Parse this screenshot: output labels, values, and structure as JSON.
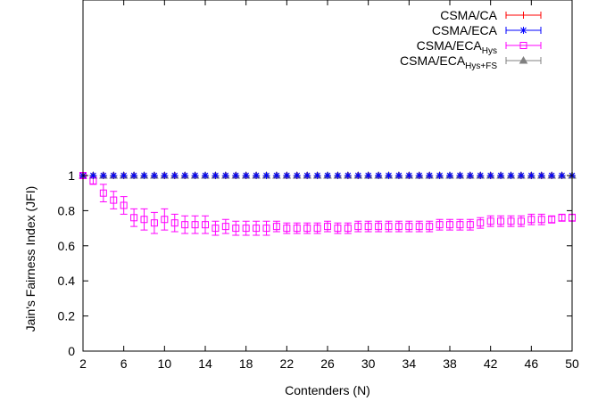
{
  "chart_data": {
    "type": "line",
    "xlabel": "Contenders (N)",
    "ylabel": "Jain's Fairness Index (JFI)",
    "xlim": [
      2,
      50
    ],
    "ylim": [
      0,
      2
    ],
    "grid": false,
    "legend_position": "top-right",
    "x_ticks": [
      "2",
      "6",
      "10",
      "14",
      "18",
      "22",
      "26",
      "30",
      "34",
      "38",
      "42",
      "46",
      "50"
    ],
    "y_ticks": [
      "0",
      "0.2",
      "0.4",
      "0.6",
      "0.8",
      "1"
    ],
    "x": [
      2,
      3,
      4,
      5,
      6,
      7,
      8,
      9,
      10,
      11,
      12,
      13,
      14,
      15,
      16,
      17,
      18,
      19,
      20,
      21,
      22,
      23,
      24,
      25,
      26,
      27,
      28,
      29,
      30,
      31,
      32,
      33,
      34,
      35,
      36,
      37,
      38,
      39,
      40,
      41,
      42,
      43,
      44,
      45,
      46,
      47,
      48,
      49,
      50
    ],
    "series": [
      {
        "name_main": "CSMA/CA",
        "name_sub": "",
        "color": "#ff0000",
        "marker": "plus",
        "values": [
          1,
          1,
          1,
          1,
          1,
          1,
          1,
          1,
          1,
          1,
          1,
          1,
          1,
          1,
          1,
          1,
          1,
          1,
          1,
          1,
          1,
          1,
          1,
          1,
          1,
          1,
          1,
          1,
          1,
          1,
          1,
          1,
          1,
          1,
          1,
          1,
          1,
          1,
          1,
          1,
          1,
          1,
          1,
          1,
          1,
          1,
          1,
          1,
          1
        ],
        "errors": [
          0,
          0,
          0,
          0,
          0,
          0,
          0,
          0,
          0,
          0,
          0,
          0,
          0,
          0,
          0,
          0,
          0,
          0,
          0,
          0,
          0,
          0,
          0,
          0,
          0,
          0,
          0,
          0,
          0,
          0,
          0,
          0,
          0,
          0,
          0,
          0,
          0,
          0,
          0,
          0,
          0,
          0,
          0,
          0,
          0,
          0,
          0,
          0,
          0
        ]
      },
      {
        "name_main": "CSMA/ECA",
        "name_sub": "",
        "color": "#0000ff",
        "marker": "star",
        "values": [
          1,
          1,
          1,
          1,
          1,
          1,
          1,
          1,
          1,
          1,
          1,
          1,
          1,
          1,
          1,
          1,
          1,
          1,
          1,
          1,
          1,
          1,
          1,
          1,
          1,
          1,
          1,
          1,
          1,
          1,
          1,
          1,
          1,
          1,
          1,
          1,
          1,
          1,
          1,
          1,
          1,
          1,
          1,
          1,
          1,
          1,
          1,
          1,
          1
        ],
        "errors": [
          0,
          0,
          0,
          0,
          0,
          0,
          0,
          0,
          0,
          0,
          0,
          0,
          0,
          0,
          0,
          0,
          0,
          0,
          0,
          0,
          0,
          0,
          0,
          0,
          0,
          0,
          0,
          0,
          0,
          0,
          0,
          0,
          0,
          0,
          0,
          0,
          0,
          0,
          0,
          0,
          0,
          0,
          0,
          0,
          0,
          0,
          0,
          0,
          0
        ]
      },
      {
        "name_main": "CSMA/ECA",
        "name_sub": "Hys",
        "color": "#ff00ff",
        "marker": "square",
        "values": [
          1.0,
          0.97,
          0.9,
          0.86,
          0.83,
          0.76,
          0.75,
          0.73,
          0.75,
          0.73,
          0.72,
          0.72,
          0.72,
          0.7,
          0.71,
          0.7,
          0.7,
          0.7,
          0.7,
          0.71,
          0.7,
          0.7,
          0.7,
          0.7,
          0.71,
          0.7,
          0.7,
          0.71,
          0.71,
          0.71,
          0.71,
          0.71,
          0.71,
          0.71,
          0.71,
          0.72,
          0.72,
          0.72,
          0.72,
          0.73,
          0.74,
          0.74,
          0.74,
          0.74,
          0.75,
          0.75,
          0.75,
          0.76,
          0.76
        ],
        "errors": [
          0.01,
          0.02,
          0.05,
          0.05,
          0.05,
          0.05,
          0.06,
          0.06,
          0.06,
          0.05,
          0.05,
          0.05,
          0.05,
          0.04,
          0.04,
          0.04,
          0.04,
          0.04,
          0.04,
          0.03,
          0.03,
          0.03,
          0.03,
          0.03,
          0.03,
          0.03,
          0.03,
          0.03,
          0.03,
          0.03,
          0.03,
          0.03,
          0.03,
          0.03,
          0.03,
          0.03,
          0.03,
          0.03,
          0.03,
          0.03,
          0.03,
          0.03,
          0.03,
          0.03,
          0.03,
          0.03,
          0.02,
          0.02,
          0.02
        ]
      },
      {
        "name_main": "CSMA/ECA",
        "name_sub": "Hys+FS",
        "color": "#808080",
        "marker": "triangle",
        "values": [
          1,
          1,
          1,
          1,
          1,
          1,
          1,
          1,
          1,
          1,
          1,
          1,
          1,
          1,
          1,
          1,
          1,
          1,
          1,
          1,
          1,
          1,
          1,
          1,
          1,
          1,
          1,
          1,
          1,
          1,
          1,
          1,
          1,
          1,
          1,
          1,
          1,
          1,
          1,
          1,
          1,
          1,
          1,
          1,
          1,
          1,
          1,
          1,
          1
        ],
        "errors": [
          0,
          0,
          0,
          0,
          0,
          0,
          0,
          0,
          0,
          0,
          0,
          0,
          0,
          0,
          0,
          0,
          0,
          0,
          0,
          0,
          0,
          0,
          0,
          0,
          0,
          0,
          0,
          0,
          0,
          0,
          0,
          0,
          0,
          0,
          0,
          0,
          0,
          0,
          0,
          0,
          0,
          0,
          0,
          0,
          0,
          0,
          0,
          0,
          0
        ]
      }
    ]
  }
}
